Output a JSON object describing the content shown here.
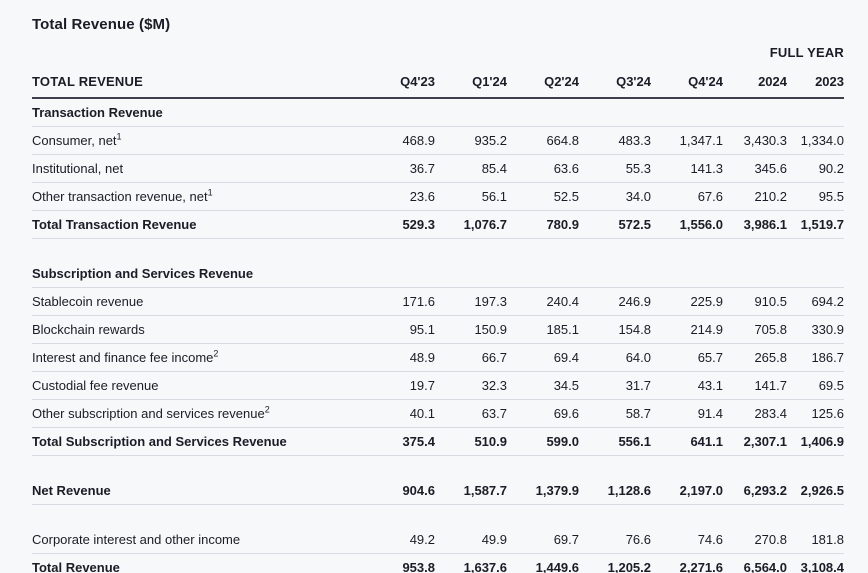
{
  "title": "Total Revenue ($M)",
  "chart_data": {
    "type": "table",
    "title": "Total Revenue ($M)",
    "group_header": "FULL YEAR",
    "label_header": "TOTAL REVENUE",
    "columns": [
      "Q4'23",
      "Q1'24",
      "Q2'24",
      "Q3'24",
      "Q4'24",
      "2024",
      "2023"
    ],
    "rows": [
      {
        "type": "section",
        "label": "Transaction Revenue"
      },
      {
        "type": "data",
        "label": "Consumer, net",
        "sup": "1",
        "values": [
          "468.9",
          "935.2",
          "664.8",
          "483.3",
          "1,347.1",
          "3,430.3",
          "1,334.0"
        ]
      },
      {
        "type": "data",
        "label": "Institutional, net",
        "values": [
          "36.7",
          "85.4",
          "63.6",
          "55.3",
          "141.3",
          "345.6",
          "90.2"
        ]
      },
      {
        "type": "data",
        "label": "Other transaction revenue, net",
        "sup": "1",
        "values": [
          "23.6",
          "56.1",
          "52.5",
          "34.0",
          "67.6",
          "210.2",
          "95.5"
        ]
      },
      {
        "type": "total",
        "label": "Total Transaction Revenue",
        "values": [
          "529.3",
          "1,076.7",
          "780.9",
          "572.5",
          "1,556.0",
          "3,986.1",
          "1,519.7"
        ]
      },
      {
        "type": "spacer"
      },
      {
        "type": "section",
        "label": "Subscription and Services Revenue"
      },
      {
        "type": "data",
        "label": "Stablecoin revenue",
        "values": [
          "171.6",
          "197.3",
          "240.4",
          "246.9",
          "225.9",
          "910.5",
          "694.2"
        ]
      },
      {
        "type": "data",
        "label": "Blockchain rewards",
        "values": [
          "95.1",
          "150.9",
          "185.1",
          "154.8",
          "214.9",
          "705.8",
          "330.9"
        ]
      },
      {
        "type": "data",
        "label": "Interest and finance fee income",
        "sup": "2",
        "values": [
          "48.9",
          "66.7",
          "69.4",
          "64.0",
          "65.7",
          "265.8",
          "186.7"
        ]
      },
      {
        "type": "data",
        "label": "Custodial fee revenue",
        "values": [
          "19.7",
          "32.3",
          "34.5",
          "31.7",
          "43.1",
          "141.7",
          "69.5"
        ]
      },
      {
        "type": "data",
        "label": "Other subscription and services revenue",
        "sup": "2",
        "values": [
          "40.1",
          "63.7",
          "69.6",
          "58.7",
          "91.4",
          "283.4",
          "125.6"
        ]
      },
      {
        "type": "total",
        "label": "Total Subscription and Services Revenue",
        "values": [
          "375.4",
          "510.9",
          "599.0",
          "556.1",
          "641.1",
          "2,307.1",
          "1,406.9"
        ]
      },
      {
        "type": "spacer"
      },
      {
        "type": "total",
        "label": "Net Revenue",
        "values": [
          "904.6",
          "1,587.7",
          "1,379.9",
          "1,128.6",
          "2,197.0",
          "6,293.2",
          "2,926.5"
        ]
      },
      {
        "type": "spacer"
      },
      {
        "type": "data",
        "label": "Corporate interest and other income",
        "values": [
          "49.2",
          "49.9",
          "69.7",
          "76.6",
          "74.6",
          "270.8",
          "181.8"
        ]
      },
      {
        "type": "total",
        "label": "Total Revenue",
        "values": [
          "953.8",
          "1,637.6",
          "1,449.6",
          "1,205.2",
          "2,271.6",
          "6,564.0",
          "3,108.4"
        ]
      }
    ]
  }
}
